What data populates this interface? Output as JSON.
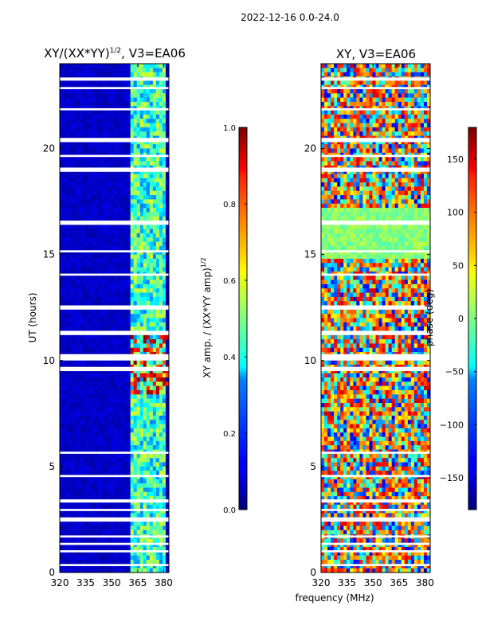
{
  "figure_title": "2022-12-16 0.0-24.0",
  "shared_xlabel": "frequency (MHz)",
  "chart_data": [
    {
      "type": "heatmap",
      "title": "XY/(XX*YY)",
      "title_sup": "1/2",
      "title_suffix": ", V3=EA06",
      "ylabel": "UT (hours)",
      "xlim": [
        320,
        383
      ],
      "ylim": [
        0,
        24
      ],
      "xticks": [
        "320",
        "335",
        "350",
        "365",
        "380"
      ],
      "yticks": [
        "0",
        "5",
        "10",
        "15",
        "20"
      ],
      "ytick_values": [
        0,
        5,
        10,
        15,
        20
      ],
      "xtick_values": [
        320,
        335,
        350,
        365,
        380
      ],
      "colorbar": {
        "label": "XY amp. / (XX*YY amp)",
        "label_sup": "1/2",
        "range": [
          0.0,
          1.0
        ],
        "ticks": [
          "0.0",
          "0.2",
          "0.4",
          "0.6",
          "0.8",
          "1.0"
        ],
        "tick_values": [
          0.0,
          0.2,
          0.4,
          0.6,
          0.8,
          1.0
        ],
        "colormap": "jet"
      },
      "gaps_hours": [
        [
          0.3,
          0.4
        ],
        [
          0.95,
          1.05
        ],
        [
          1.3,
          1.4
        ],
        [
          1.65,
          1.75
        ],
        [
          2.4,
          2.6
        ],
        [
          2.9,
          3.0
        ],
        [
          3.3,
          3.45
        ],
        [
          4.5,
          4.6
        ],
        [
          5.6,
          5.7
        ],
        [
          9.5,
          9.7
        ],
        [
          10.0,
          10.3
        ],
        [
          11.2,
          11.4
        ],
        [
          12.4,
          12.6
        ],
        [
          14.0,
          14.1
        ],
        [
          15.1,
          15.2
        ],
        [
          16.4,
          16.6
        ],
        [
          18.9,
          19.1
        ],
        [
          19.6,
          19.7
        ],
        [
          20.3,
          20.5
        ],
        [
          21.8,
          21.9
        ],
        [
          22.8,
          22.9
        ],
        [
          23.2,
          23.35
        ]
      ]
    },
    {
      "type": "heatmap",
      "title": "XY, V3=EA06",
      "xlim": [
        320,
        383
      ],
      "ylim": [
        0,
        24
      ],
      "xticks": [
        "320",
        "335",
        "350",
        "365",
        "380"
      ],
      "yticks": [
        "0",
        "5",
        "10",
        "15",
        "20"
      ],
      "ytick_values": [
        0,
        5,
        10,
        15,
        20
      ],
      "xtick_values": [
        320,
        335,
        350,
        365,
        380
      ],
      "colorbar": {
        "label": "phase (deg)",
        "range": [
          -180,
          180
        ],
        "ticks": [
          "−150",
          "−100",
          "−50",
          "0",
          "50",
          "100",
          "150"
        ],
        "tick_values": [
          -150,
          -100,
          -50,
          0,
          50,
          100,
          150
        ],
        "colormap": "jet"
      },
      "gaps_hours": [
        [
          0.3,
          0.4
        ],
        [
          0.95,
          1.05
        ],
        [
          1.3,
          1.4
        ],
        [
          1.65,
          1.75
        ],
        [
          2.4,
          2.6
        ],
        [
          2.9,
          3.0
        ],
        [
          3.3,
          3.45
        ],
        [
          4.5,
          4.6
        ],
        [
          5.6,
          5.7
        ],
        [
          9.5,
          9.7
        ],
        [
          10.0,
          10.3
        ],
        [
          11.2,
          11.4
        ],
        [
          12.4,
          12.6
        ],
        [
          14.0,
          14.1
        ],
        [
          15.1,
          15.2
        ],
        [
          16.4,
          16.6
        ],
        [
          18.9,
          19.1
        ],
        [
          19.6,
          19.7
        ],
        [
          20.3,
          20.5
        ],
        [
          21.8,
          21.9
        ],
        [
          22.8,
          22.9
        ],
        [
          23.2,
          23.35
        ]
      ]
    }
  ]
}
